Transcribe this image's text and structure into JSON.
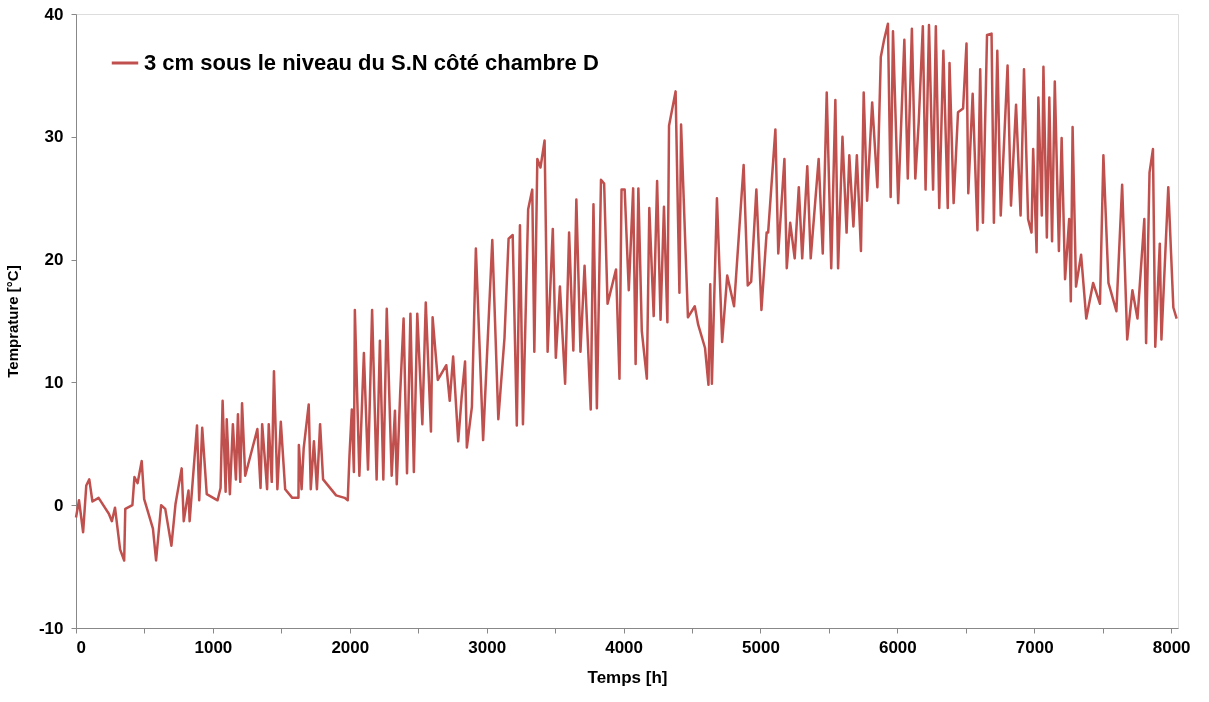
{
  "chart_data": {
    "type": "line",
    "xlabel": "Temps [h]",
    "ylabel": "Temprature [°C]",
    "xlim": [
      0,
      8050
    ],
    "ylim": [
      -10,
      40
    ],
    "xticks": [
      0,
      {
        "value": 500,
        "label": null
      },
      1000,
      {
        "value": 1500,
        "label": null
      },
      2000,
      {
        "value": 2500,
        "label": null
      },
      3000,
      {
        "value": 3500,
        "label": null
      },
      4000,
      {
        "value": 4500,
        "label": null
      },
      5000,
      {
        "value": 5500,
        "label": null
      },
      6000,
      {
        "value": 6500,
        "label": null
      },
      7000,
      {
        "value": 7500,
        "label": null
      },
      8000
    ],
    "yticks": [
      -10,
      0,
      10,
      20,
      30,
      40
    ],
    "grid": false,
    "legend": "top left",
    "marker": "none",
    "line_style": "solid",
    "series": [
      {
        "name": "3 cm sous le niveau du S.N côté chambre D",
        "color": "#c0504d",
        "x": [
          0,
          22,
          52,
          75,
          97,
          120,
          165,
          240,
          262,
          285,
          322,
          352,
          360,
          412,
          427,
          450,
          480,
          498,
          562,
          585,
          622,
          652,
          697,
          727,
          772,
          787,
          822,
          830,
          884,
          900,
          922,
          955,
          1034,
          1056,
          1071,
          1093,
          1101,
          1124,
          1146,
          1168,
          1183,
          1200,
          1213,
          1236,
          1325,
          1348,
          1360,
          1396,
          1408,
          1430,
          1446,
          1471,
          1496,
          1528,
          1580,
          1625,
          1628,
          1648,
          1663,
          1700,
          1715,
          1738,
          1760,
          1783,
          1805,
          1900,
          1962,
          1985,
          1998,
          2015,
          2030,
          2037,
          2070,
          2103,
          2133,
          2146,
          2163,
          2196,
          2220,
          2245,
          2270,
          2306,
          2330,
          2343,
          2368,
          2393,
          2418,
          2443,
          2468,
          2493,
          2530,
          2555,
          2593,
          2605,
          2643,
          2705,
          2730,
          2755,
          2792,
          2817,
          2842,
          2855,
          2892,
          2921,
          2974,
          3041,
          3085,
          3130,
          3160,
          3190,
          3220,
          3243,
          3265,
          3303,
          3333,
          3348,
          3370,
          3393,
          3423,
          3445,
          3483,
          3505,
          3535,
          3573,
          3602,
          3633,
          3655,
          3685,
          3715,
          3760,
          3780,
          3805,
          3835,
          3858,
          3883,
          3945,
          3970,
          3985,
          4008,
          4038,
          4070,
          4088,
          4108,
          4133,
          4170,
          4188,
          4220,
          4245,
          4270,
          4295,
          4320,
          4332,
          4380,
          4408,
          4420,
          4470,
          4520,
          4545,
          4595,
          4620,
          4633,
          4645,
          4682,
          4720,
          4757,
          4807,
          4877,
          4907,
          4932,
          4970,
          5007,
          5045,
          5056,
          5109,
          5130,
          5175,
          5192,
          5217,
          5250,
          5280,
          5305,
          5342,
          5367,
          5425,
          5455,
          5484,
          5517,
          5547,
          5567,
          5599,
          5629,
          5649,
          5679,
          5704,
          5734,
          5754,
          5779,
          5816,
          5854,
          5879,
          5903,
          5931,
          5951,
          5968,
          6006,
          6051,
          6076,
          6106,
          6131,
          6156,
          6186,
          6206,
          6231,
          6261,
          6281,
          6306,
          6336,
          6368,
          6381,
          6411,
          6443,
          6480,
          6505,
          6518,
          6550,
          6585,
          6605,
          6625,
          6655,
          6688,
          6705,
          6730,
          6755,
          6805,
          6830,
          6867,
          6900,
          6925,
          6955,
          6980,
          6992,
          7017,
          7030,
          7055,
          7067,
          7092,
          7110,
          7130,
          7150,
          7180,
          7200,
          7225,
          7255,
          7267,
          7280,
          7305,
          7342,
          7380,
          7430,
          7480,
          7505,
          7542,
          7600,
          7642,
          7679,
          7717,
          7754,
          7804,
          7817,
          7842,
          7867,
          7884,
          7917,
          7929,
          7979,
          8016,
          8040
        ],
        "values": [
          -1,
          0.4,
          -2.2,
          1.6,
          2.1,
          0.3,
          0.6,
          -0.7,
          -1.3,
          -0.2,
          -3.6,
          -4.5,
          -0.3,
          0,
          2.3,
          1.8,
          3.6,
          0.5,
          -1.9,
          -4.5,
          0,
          -0.3,
          -3.3,
          0.1,
          3,
          -1.3,
          1.2,
          -1.3,
          6.5,
          0.4,
          6.3,
          0.9,
          0.4,
          1.4,
          8.5,
          1.1,
          7,
          0.9,
          6.6,
          2.1,
          7.4,
          1.9,
          8.3,
          2.4,
          6.2,
          1.4,
          6.6,
          1.3,
          6.6,
          1.9,
          10.9,
          1.3,
          6.8,
          1.3,
          0.6,
          0.6,
          4.9,
          1.3,
          4.6,
          8.2,
          1.3,
          5.2,
          1.3,
          6.6,
          2.1,
          0.8,
          0.6,
          0.4,
          4.1,
          7.8,
          2.7,
          15.9,
          2.4,
          12.4,
          2.9,
          8.3,
          15.9,
          2.1,
          13.4,
          2.1,
          16,
          2.4,
          7.7,
          1.7,
          9.1,
          15.2,
          2.6,
          15.6,
          2.7,
          15.6,
          6.6,
          16.5,
          6,
          15.3,
          10.2,
          11.4,
          8.5,
          12.1,
          5.2,
          8.8,
          11.7,
          4.7,
          8,
          20.9,
          5.3,
          21.6,
          7,
          13.6,
          21.7,
          22,
          6.5,
          22.8,
          6.6,
          24.1,
          25.7,
          12.5,
          28.2,
          27.5,
          29.7,
          12.5,
          22.5,
          12,
          17.8,
          9.9,
          22.2,
          12.6,
          24.9,
          12.5,
          19.5,
          7.8,
          24.5,
          7.9,
          26.5,
          26.2,
          16.4,
          19.2,
          10.3,
          25.7,
          25.7,
          17.5,
          25.8,
          11.5,
          25.8,
          14.2,
          10.3,
          24.2,
          15.4,
          26.4,
          15.1,
          24.3,
          14.9,
          30.9,
          33.7,
          17.3,
          31,
          15.3,
          16.2,
          14.7,
          12.8,
          9.8,
          18,
          9.9,
          25,
          13.3,
          18.7,
          16.2,
          27.7,
          17.9,
          18.2,
          25.7,
          15.9,
          22.2,
          22.2,
          30.6,
          20.5,
          28.2,
          19.3,
          23,
          20.1,
          25.9,
          20.1,
          27.6,
          20.1,
          28.2,
          20.5,
          33.6,
          19.3,
          33,
          19.3,
          30,
          22.2,
          28.5,
          22.7,
          28.5,
          20.7,
          33.6,
          24.8,
          32.8,
          25.9,
          36.5,
          37.9,
          39.2,
          25.1,
          38.6,
          24.6,
          37.9,
          26.6,
          38.8,
          26.6,
          31.2,
          39,
          25.7,
          39.1,
          25.7,
          39,
          24.2,
          37,
          24.2,
          36,
          24.6,
          32,
          32.3,
          37.6,
          25.4,
          33.5,
          22.4,
          35.5,
          23,
          38.3,
          38.4,
          23,
          37,
          23.6,
          35.8,
          24.4,
          32.6,
          23.6,
          35.5,
          23.3,
          22.2,
          29,
          20.6,
          33.2,
          23.6,
          35.7,
          21.8,
          33.2,
          21.5,
          34.5,
          20.7,
          29.9,
          18.4,
          23.3,
          16.6,
          30.8,
          17.8,
          20.4,
          15.2,
          18.1,
          16.4,
          28.5,
          18.1,
          15.8,
          26.1,
          13.5,
          17.5,
          15.2,
          23.3,
          13.2,
          27.1,
          29,
          12.9,
          21.3,
          13.5,
          25.9,
          16.1,
          15.2
        ]
      }
    ]
  }
}
